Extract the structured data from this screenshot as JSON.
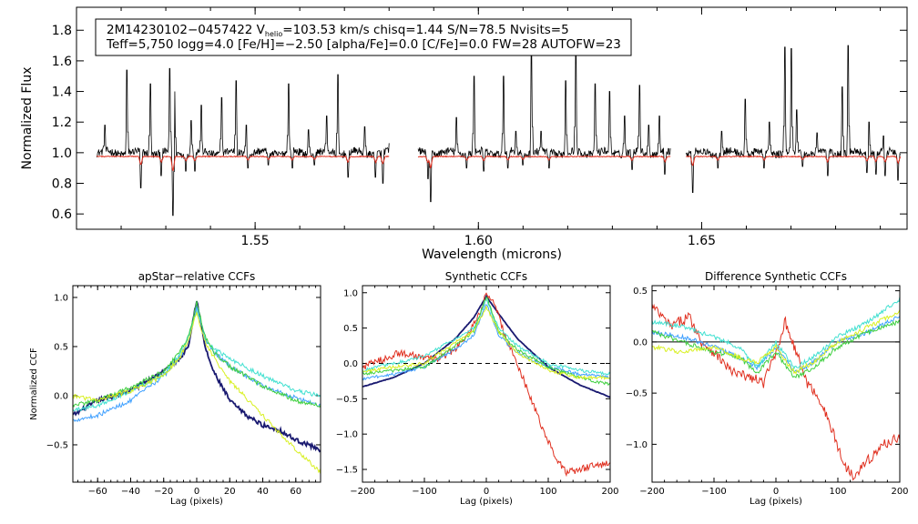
{
  "chart_data": [
    {
      "type": "line",
      "name": "spectrum",
      "title": "",
      "xlabel": "Wavelength (microns)",
      "ylabel": "Normalized Flux",
      "xlim": [
        1.51,
        1.696
      ],
      "ylim": [
        0.5,
        1.95
      ],
      "xticks": [
        1.55,
        1.6,
        1.65
      ],
      "xtick_labels": [
        "1.55",
        "1.60",
        "1.65"
      ],
      "yticks": [
        0.6,
        0.8,
        1.0,
        1.2,
        1.4,
        1.6,
        1.8
      ],
      "ytick_labels": [
        "0.6",
        "0.8",
        "1.0",
        "1.2",
        "1.4",
        "1.6",
        "1.8"
      ],
      "info_box": {
        "line1_a": "2M14230102−0457422  V",
        "line1_sub": "helio",
        "line1_b": "=103.53 km/s  chisq=1.44  S/N=78.5  Nvisits=5",
        "line2": "Teff=5,750 logg=4.0 [Fe/H]=−2.50 [alpha/Fe]=0.0 [C/Fe]=0.0 FW=28 AUTOFW=23"
      },
      "segments": [
        [
          1.5145,
          1.58
        ],
        [
          1.5865,
          1.643
        ],
        [
          1.6465,
          1.6945
        ]
      ],
      "series": [
        {
          "name": "observed",
          "color": "#000000",
          "baseline": 1.0
        },
        {
          "name": "model",
          "color": "#e03020",
          "baseline": 0.975
        }
      ],
      "emission_spikes": [
        {
          "x": 1.5163,
          "y": 1.18
        },
        {
          "x": 1.5213,
          "y": 1.54
        },
        {
          "x": 1.5265,
          "y": 1.45
        },
        {
          "x": 1.5309,
          "y": 1.55
        },
        {
          "x": 1.532,
          "y": 1.4
        },
        {
          "x": 1.5357,
          "y": 1.21
        },
        {
          "x": 1.5379,
          "y": 1.31
        },
        {
          "x": 1.5425,
          "y": 1.36
        },
        {
          "x": 1.5457,
          "y": 1.47
        },
        {
          "x": 1.548,
          "y": 1.18
        },
        {
          "x": 1.5575,
          "y": 1.45
        },
        {
          "x": 1.562,
          "y": 1.15
        },
        {
          "x": 1.566,
          "y": 1.24
        },
        {
          "x": 1.5685,
          "y": 1.51
        },
        {
          "x": 1.5746,
          "y": 1.17
        },
        {
          "x": 1.5803,
          "y": 1.25
        },
        {
          "x": 1.5951,
          "y": 1.23
        },
        {
          "x": 1.599,
          "y": 1.5
        },
        {
          "x": 1.6056,
          "y": 1.5
        },
        {
          "x": 1.6084,
          "y": 1.14
        },
        {
          "x": 1.6119,
          "y": 1.68
        },
        {
          "x": 1.614,
          "y": 1.14
        },
        {
          "x": 1.6196,
          "y": 1.47
        },
        {
          "x": 1.6218,
          "y": 1.68
        },
        {
          "x": 1.6262,
          "y": 1.45
        },
        {
          "x": 1.6294,
          "y": 1.4
        },
        {
          "x": 1.6327,
          "y": 1.24
        },
        {
          "x": 1.6361,
          "y": 1.44
        },
        {
          "x": 1.6381,
          "y": 1.18
        },
        {
          "x": 1.6405,
          "y": 1.24
        },
        {
          "x": 1.6545,
          "y": 1.14
        },
        {
          "x": 1.6598,
          "y": 1.35
        },
        {
          "x": 1.6652,
          "y": 1.2
        },
        {
          "x": 1.6686,
          "y": 1.69
        },
        {
          "x": 1.6701,
          "y": 1.68
        },
        {
          "x": 1.6713,
          "y": 1.28
        },
        {
          "x": 1.6758,
          "y": 1.13
        },
        {
          "x": 1.6815,
          "y": 1.43
        },
        {
          "x": 1.6828,
          "y": 1.7
        },
        {
          "x": 1.6875,
          "y": 1.2
        },
        {
          "x": 1.6907,
          "y": 1.11
        }
      ],
      "absorption_dips": [
        {
          "x": 1.5244,
          "y": 0.77
        },
        {
          "x": 1.529,
          "y": 0.85
        },
        {
          "x": 1.5316,
          "y": 0.59
        },
        {
          "x": 1.5345,
          "y": 0.88
        },
        {
          "x": 1.5365,
          "y": 0.88
        },
        {
          "x": 1.5484,
          "y": 0.9
        },
        {
          "x": 1.553,
          "y": 0.92
        },
        {
          "x": 1.5583,
          "y": 0.9
        },
        {
          "x": 1.5633,
          "y": 0.92
        },
        {
          "x": 1.5708,
          "y": 0.84
        },
        {
          "x": 1.577,
          "y": 0.84
        },
        {
          "x": 1.5786,
          "y": 0.8
        },
        {
          "x": 1.5887,
          "y": 0.83
        },
        {
          "x": 1.5893,
          "y": 0.68
        },
        {
          "x": 1.5974,
          "y": 0.9
        },
        {
          "x": 1.6012,
          "y": 0.88
        },
        {
          "x": 1.6066,
          "y": 0.9
        },
        {
          "x": 1.61,
          "y": 0.92
        },
        {
          "x": 1.6158,
          "y": 0.9
        },
        {
          "x": 1.6344,
          "y": 0.89
        },
        {
          "x": 1.6418,
          "y": 0.86
        },
        {
          "x": 1.648,
          "y": 0.74
        },
        {
          "x": 1.6536,
          "y": 0.9
        },
        {
          "x": 1.664,
          "y": 0.9
        },
        {
          "x": 1.6726,
          "y": 0.91
        },
        {
          "x": 1.6782,
          "y": 0.85
        },
        {
          "x": 1.687,
          "y": 0.87
        },
        {
          "x": 1.689,
          "y": 0.86
        },
        {
          "x": 1.6911,
          "y": 0.85
        },
        {
          "x": 1.694,
          "y": 0.82
        }
      ]
    },
    {
      "type": "line",
      "name": "apstar-ccf",
      "title": "apStar−relative CCFs",
      "xlabel": "Lag (pixels)",
      "ylabel": "Normalized CCF",
      "xlim": [
        -75,
        75
      ],
      "ylim": [
        -0.88,
        1.12
      ],
      "xticks": [
        -60,
        -40,
        -20,
        0,
        20,
        40,
        60
      ],
      "xtick_labels": [
        "−60",
        "−40",
        "−20",
        "0",
        "20",
        "40",
        "60"
      ],
      "yticks": [
        -0.5,
        0.0,
        0.5,
        1.0
      ],
      "ytick_labels": [
        "−0.5",
        "0.0",
        "0.5",
        "1.0"
      ],
      "zero_line": false,
      "series": [
        {
          "name": "visit-1",
          "color": "#191970",
          "x": [
            -75,
            -60,
            -40,
            -30,
            -20,
            -10,
            -5,
            0,
            5,
            10,
            20,
            30,
            40,
            50,
            60,
            75
          ],
          "y": [
            -0.2,
            -0.05,
            0.05,
            0.15,
            0.25,
            0.38,
            0.52,
            0.98,
            0.5,
            0.25,
            -0.05,
            -0.2,
            -0.3,
            -0.35,
            -0.45,
            -0.55
          ]
        },
        {
          "name": "visit-2",
          "color": "#3fa0ff",
          "x": [
            -75,
            -60,
            -40,
            -20,
            -10,
            -5,
            0,
            5,
            10,
            20,
            40,
            60,
            75
          ],
          "y": [
            -0.25,
            -0.2,
            -0.05,
            0.2,
            0.4,
            0.55,
            0.9,
            0.58,
            0.45,
            0.3,
            0.1,
            -0.02,
            -0.1
          ]
        },
        {
          "name": "visit-3",
          "color": "#40e0d0",
          "x": [
            -75,
            -60,
            -40,
            -20,
            -10,
            -5,
            0,
            5,
            10,
            20,
            40,
            60,
            75
          ],
          "y": [
            -0.15,
            -0.1,
            0.05,
            0.22,
            0.42,
            0.6,
            0.88,
            0.6,
            0.48,
            0.38,
            0.2,
            0.05,
            0.0
          ]
        },
        {
          "name": "visit-4",
          "color": "#40d040",
          "x": [
            -75,
            -60,
            -40,
            -20,
            -10,
            -5,
            0,
            5,
            10,
            20,
            40,
            60,
            75
          ],
          "y": [
            -0.1,
            -0.05,
            0.08,
            0.25,
            0.45,
            0.6,
            0.95,
            0.6,
            0.45,
            0.3,
            0.1,
            -0.05,
            -0.1
          ]
        },
        {
          "name": "visit-5",
          "color": "#d8f020",
          "x": [
            -75,
            -60,
            -40,
            -20,
            -10,
            -5,
            0,
            5,
            10,
            20,
            40,
            60,
            75
          ],
          "y": [
            0.0,
            -0.05,
            0.05,
            0.2,
            0.4,
            0.55,
            0.85,
            0.55,
            0.4,
            0.15,
            -0.2,
            -0.55,
            -0.78
          ]
        }
      ]
    },
    {
      "type": "line",
      "name": "synthetic-ccf",
      "title": "Synthetic CCFs",
      "xlabel": "Lag (pixels)",
      "ylabel": "",
      "xlim": [
        -200,
        200
      ],
      "ylim": [
        -1.68,
        1.1
      ],
      "xticks": [
        -200,
        -100,
        0,
        100,
        200
      ],
      "xtick_labels": [
        "−200",
        "−100",
        "0",
        "100",
        "200"
      ],
      "yticks": [
        -1.5,
        -1.0,
        -0.5,
        0.0,
        0.5,
        1.0
      ],
      "ytick_labels": [
        "−1.5",
        "−1.0",
        "−0.5",
        "0.0",
        "0.5",
        "1.0"
      ],
      "zero_line": true,
      "series": [
        {
          "name": "template",
          "color": "#191970",
          "x": [
            -200,
            -150,
            -100,
            -50,
            -20,
            0,
            20,
            50,
            100,
            150,
            200
          ],
          "y": [
            -0.33,
            -0.2,
            0.0,
            0.35,
            0.65,
            0.95,
            0.7,
            0.35,
            -0.05,
            -0.3,
            -0.48
          ]
        },
        {
          "name": "visit-1",
          "color": "#e03020",
          "x": [
            -200,
            -170,
            -140,
            -110,
            -80,
            -50,
            -30,
            -10,
            0,
            15,
            30,
            50,
            70,
            90,
            110,
            130,
            150,
            170,
            200
          ],
          "y": [
            -0.05,
            0.05,
            0.15,
            0.1,
            0.05,
            0.2,
            0.4,
            0.7,
            1.0,
            0.8,
            0.4,
            0.0,
            -0.45,
            -0.9,
            -1.3,
            -1.55,
            -1.5,
            -1.45,
            -1.42
          ]
        },
        {
          "name": "visit-2",
          "color": "#3fa0ff",
          "x": [
            -200,
            -150,
            -100,
            -50,
            -20,
            0,
            20,
            50,
            100,
            150,
            200
          ],
          "y": [
            -0.22,
            -0.15,
            -0.05,
            0.2,
            0.4,
            0.85,
            0.4,
            0.15,
            -0.05,
            -0.15,
            -0.2
          ]
        },
        {
          "name": "visit-3",
          "color": "#40e0d0",
          "x": [
            -200,
            -150,
            -100,
            -50,
            -20,
            0,
            20,
            50,
            100,
            150,
            200
          ],
          "y": [
            -0.1,
            0.0,
            0.1,
            0.35,
            0.5,
            0.9,
            0.5,
            0.25,
            0.0,
            -0.1,
            -0.15
          ]
        },
        {
          "name": "visit-4",
          "color": "#40d040",
          "x": [
            -200,
            -150,
            -100,
            -50,
            -20,
            0,
            20,
            50,
            100,
            150,
            200
          ],
          "y": [
            -0.15,
            -0.1,
            -0.05,
            0.25,
            0.45,
            0.95,
            0.45,
            0.2,
            -0.05,
            -0.2,
            -0.3
          ]
        },
        {
          "name": "visit-5",
          "color": "#d8f020",
          "x": [
            -200,
            -150,
            -100,
            -50,
            -20,
            0,
            20,
            50,
            100,
            150,
            200
          ],
          "y": [
            -0.12,
            -0.05,
            0.0,
            0.3,
            0.45,
            0.8,
            0.45,
            0.15,
            -0.1,
            -0.2,
            -0.2
          ]
        }
      ]
    },
    {
      "type": "line",
      "name": "difference-ccf",
      "title": "Difference Synthetic CCFs",
      "xlabel": "Lag (pixels)",
      "ylabel": "",
      "xlim": [
        -200,
        200
      ],
      "ylim": [
        -1.37,
        0.55
      ],
      "xticks": [
        -200,
        -100,
        0,
        100,
        200
      ],
      "xtick_labels": [
        "−200",
        "−100",
        "0",
        "100",
        "200"
      ],
      "yticks": [
        -1.0,
        -0.5,
        0.0,
        0.5
      ],
      "ytick_labels": [
        "−1.0",
        "−0.5",
        "0.0",
        "0.5"
      ],
      "zero_line": true,
      "series": [
        {
          "name": "visit-1",
          "color": "#e03020",
          "x": [
            -200,
            -170,
            -140,
            -120,
            -100,
            -70,
            -40,
            -20,
            0,
            15,
            30,
            50,
            70,
            90,
            110,
            125,
            150,
            175,
            200
          ],
          "y": [
            0.35,
            0.15,
            0.25,
            0.0,
            -0.1,
            -0.3,
            -0.35,
            -0.4,
            -0.1,
            0.2,
            -0.05,
            -0.4,
            -0.55,
            -0.85,
            -1.2,
            -1.3,
            -1.15,
            -1.0,
            -0.92
          ]
        },
        {
          "name": "visit-2",
          "color": "#3fa0ff",
          "x": [
            -200,
            -150,
            -100,
            -60,
            -30,
            0,
            30,
            60,
            100,
            150,
            200
          ],
          "y": [
            0.1,
            0.05,
            -0.05,
            -0.15,
            -0.25,
            -0.05,
            -0.3,
            -0.2,
            0.0,
            0.1,
            0.25
          ]
        },
        {
          "name": "visit-3",
          "color": "#40e0d0",
          "x": [
            -200,
            -150,
            -100,
            -60,
            -30,
            0,
            30,
            60,
            100,
            150,
            200
          ],
          "y": [
            0.2,
            0.15,
            0.05,
            -0.05,
            -0.25,
            0.0,
            -0.25,
            -0.15,
            0.05,
            0.2,
            0.42
          ]
        },
        {
          "name": "visit-4",
          "color": "#40d040",
          "x": [
            -200,
            -150,
            -100,
            -60,
            -30,
            0,
            30,
            60,
            100,
            150,
            200
          ],
          "y": [
            0.1,
            0.0,
            -0.1,
            -0.15,
            -0.3,
            -0.1,
            -0.35,
            -0.25,
            -0.05,
            0.1,
            0.2
          ]
        },
        {
          "name": "visit-5",
          "color": "#d8f020",
          "x": [
            -200,
            -150,
            -100,
            -60,
            -30,
            0,
            30,
            60,
            100,
            150,
            200
          ],
          "y": [
            -0.05,
            -0.1,
            -0.05,
            -0.15,
            -0.2,
            -0.05,
            -0.3,
            -0.2,
            0.0,
            0.15,
            0.3
          ]
        }
      ]
    }
  ]
}
